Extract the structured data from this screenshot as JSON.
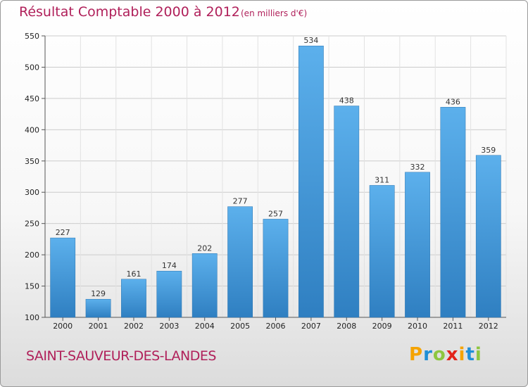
{
  "chart_data": {
    "type": "bar",
    "title": "Résultat Comptable 2000 à 2012",
    "subtitle": "(en milliers d'€)",
    "categories": [
      "2000",
      "2001",
      "2002",
      "2003",
      "2004",
      "2005",
      "2006",
      "2007",
      "2008",
      "2009",
      "2010",
      "2011",
      "2012"
    ],
    "values": [
      227,
      129,
      161,
      174,
      202,
      277,
      257,
      534,
      438,
      311,
      332,
      436,
      359
    ],
    "ylim": [
      100,
      550
    ],
    "yticks": [
      100,
      150,
      200,
      250,
      300,
      350,
      400,
      450,
      500,
      550
    ],
    "grid": true,
    "xlabel": "",
    "ylabel": ""
  },
  "location": "SAINT-SAUVEUR-DES-LANDES",
  "brand": {
    "letters": [
      "P",
      "r",
      "o",
      "x",
      "i",
      "t",
      "i"
    ],
    "colors": [
      "#f5a300",
      "#1f8fd6",
      "#8dc63f",
      "#e2231a",
      "#f5a300",
      "#1f8fd6",
      "#8dc63f"
    ]
  },
  "colors": {
    "bar_top": "#5cb0ec",
    "bar_bottom": "#2f7fc1",
    "grid": "#cccccc",
    "accent": "#b0205a"
  }
}
